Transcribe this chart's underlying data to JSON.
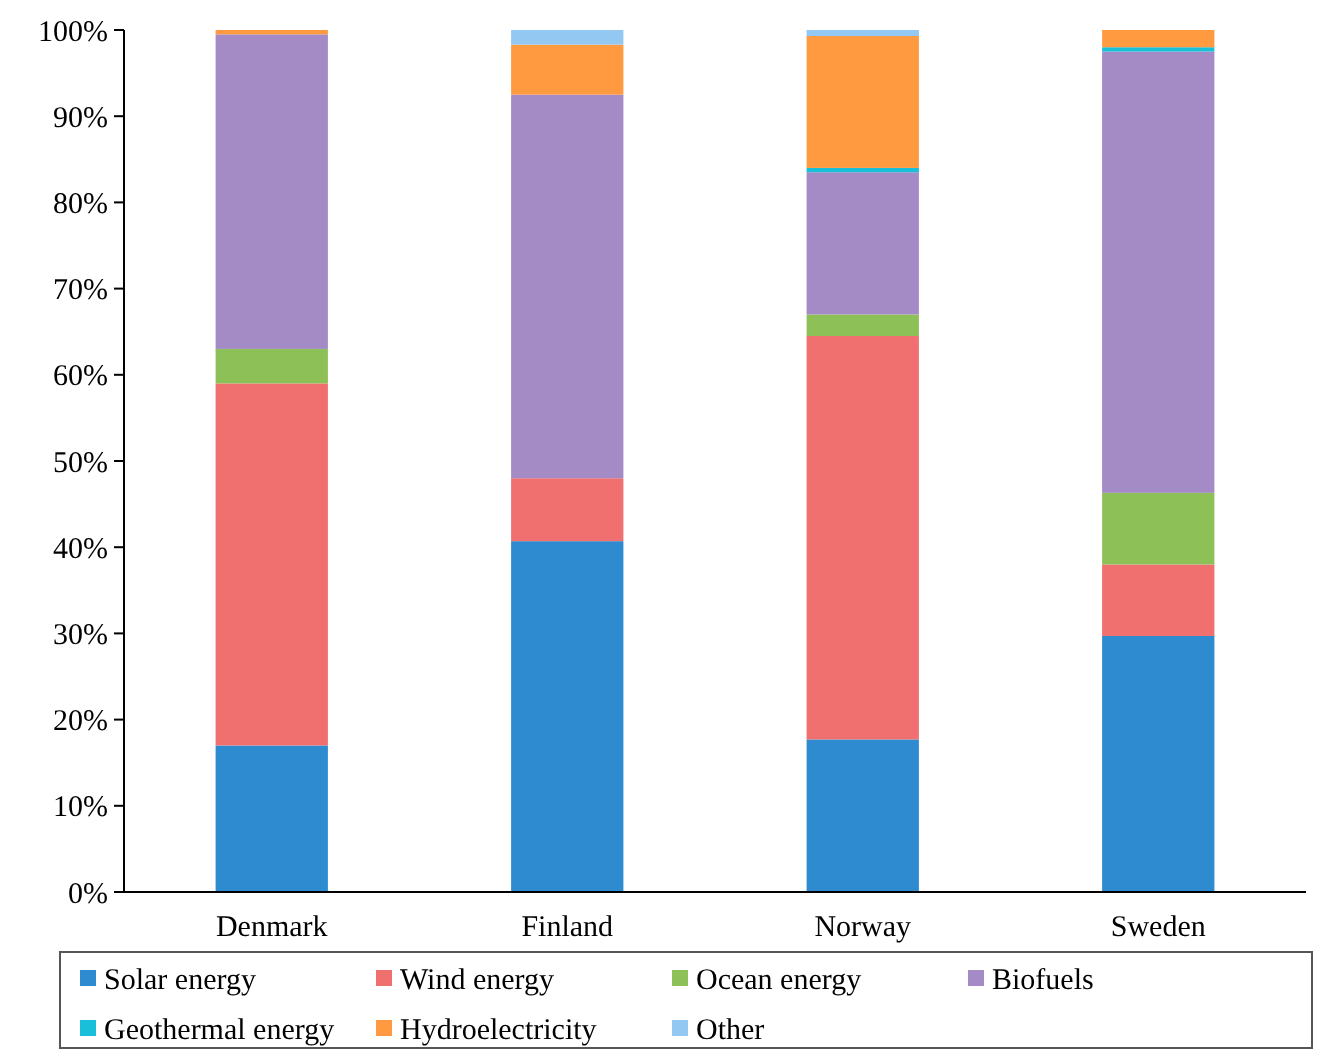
{
  "chart_data": {
    "type": "bar",
    "stacked": true,
    "categories": [
      "Denmark",
      "Finland",
      "Norway",
      "Sweden"
    ],
    "series": [
      {
        "name": "Solar energy",
        "color": "#2e8bd0",
        "values": [
          17,
          40.7,
          17.7,
          29.7
        ]
      },
      {
        "name": "Wind energy",
        "color": "#f07070",
        "values": [
          42,
          7.3,
          46.8,
          8.3
        ]
      },
      {
        "name": "Ocean energy",
        "color": "#8dc158",
        "values": [
          4,
          0,
          2.5,
          8.3
        ]
      },
      {
        "name": "Biofuels",
        "color": "#a58bc6",
        "values": [
          36.5,
          44.5,
          16.5,
          51.2
        ]
      },
      {
        "name": "Geothermal energy",
        "color": "#19bfd9",
        "values": [
          0,
          0,
          0.5,
          0.5
        ]
      },
      {
        "name": "Hydroelectricity",
        "color": "#ff9a40",
        "values": [
          0.5,
          5.8,
          15.3,
          2
        ]
      },
      {
        "name": "Other",
        "color": "#93c8f2",
        "values": [
          0,
          1.7,
          0.7,
          0
        ]
      }
    ],
    "ylim": [
      0,
      100
    ],
    "yticks": [
      {
        "value": 0,
        "label": "0%"
      },
      {
        "value": 10,
        "label": "10%"
      },
      {
        "value": 20,
        "label": "20%"
      },
      {
        "value": 30,
        "label": "30%"
      },
      {
        "value": 40,
        "label": "40%"
      },
      {
        "value": 50,
        "label": "50%"
      },
      {
        "value": 60,
        "label": "60%"
      },
      {
        "value": 70,
        "label": "70%"
      },
      {
        "value": 80,
        "label": "80%"
      },
      {
        "value": 90,
        "label": "90%"
      },
      {
        "value": 100,
        "label": "100%"
      }
    ],
    "grid": false,
    "legend": "bottom"
  }
}
